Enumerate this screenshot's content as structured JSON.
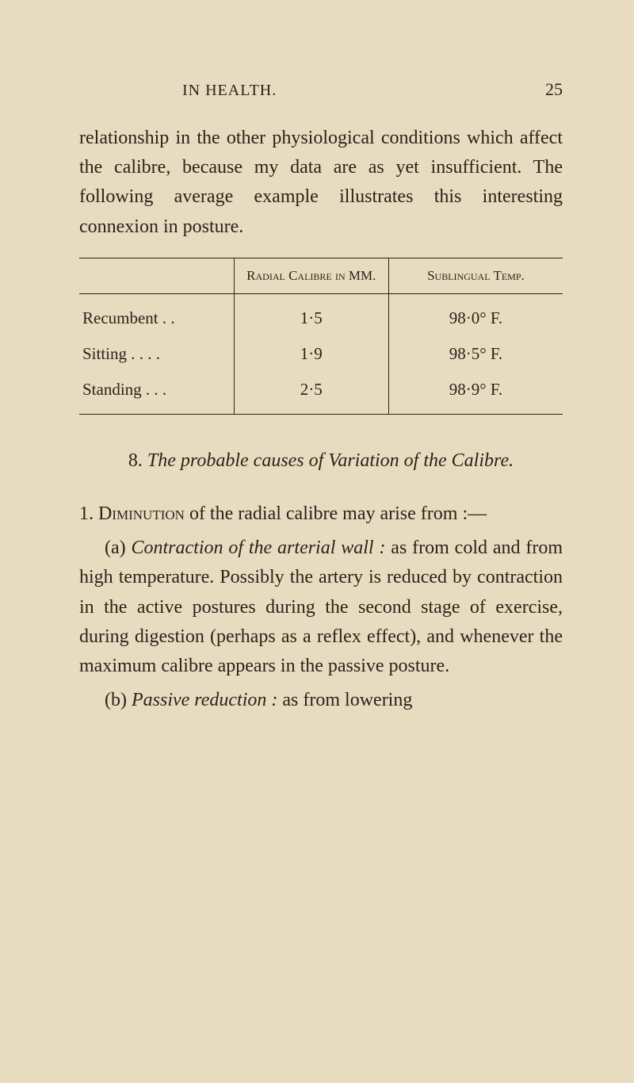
{
  "header": {
    "running_title": "IN HEALTH.",
    "page_number": "25"
  },
  "paragraph1": "relationship in the other physiological conditions which affect the calibre, because my data are as yet insufficient. The following average example illustrates this interesting connexion in posture.",
  "table": {
    "columns": [
      "",
      "Radial Calibre in MM.",
      "Sublingual Temp."
    ],
    "rows": [
      {
        "label": "Recumbent  .  .",
        "calibre": "1·5",
        "temp": "98·0°  F."
      },
      {
        "label": "Sitting  .   .   .   .",
        "calibre": "1·9",
        "temp": "98·5°  F."
      },
      {
        "label": "Standing  .   .   .",
        "calibre": "2·5",
        "temp": "98·9°  F."
      }
    ]
  },
  "section": {
    "number": "8.",
    "title_italic": "The probable causes of Variation of the Calibre.",
    "para_lead": "1. ",
    "para_smallcaps": "Diminution",
    "para_rest": " of the radial calibre may arise from :—",
    "item_a_label": "(a) ",
    "item_a_italic": "Contraction of the arterial wall :",
    "item_a_body": " as from cold and from high temperature. Possibly the artery is reduced by contraction in the active postures during the second stage of exercise, during digestion (perhaps as a reflex effect), and whenever the maximum calibre appears in the passive posture.",
    "item_b_label": "(b) ",
    "item_b_italic": "Passive reduction :",
    "item_b_body": " as from lowering"
  },
  "styling": {
    "background_color": "#e8dcc0",
    "text_color": "#2a2318",
    "body_fontsize": 24,
    "header_fontsize": 20,
    "table_header_fontsize": 17,
    "table_cell_fontsize": 21,
    "line_height": 1.55
  }
}
